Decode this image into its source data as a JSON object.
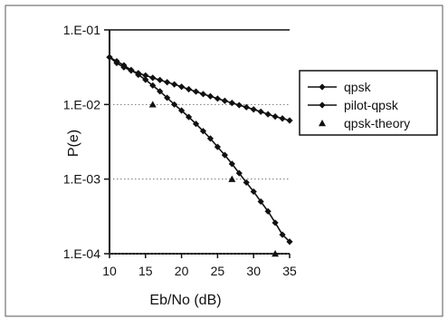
{
  "chart_data": {
    "type": "line",
    "title": "",
    "xlabel": "Eb/No (dB)",
    "ylabel": "P(e)",
    "xlim": [
      10,
      35
    ],
    "ylim": [
      0.0001,
      0.1
    ],
    "yscale": "log",
    "x_ticks": [
      10,
      15,
      20,
      25,
      30,
      35
    ],
    "x_tick_labels": [
      "10",
      "15",
      "20",
      "25",
      "30",
      "35"
    ],
    "y_ticks": [
      0.1,
      0.01,
      0.001,
      0.0001
    ],
    "y_tick_labels": [
      "1.E-01",
      "1.E-02",
      "1.E-03",
      "1.E-04"
    ],
    "grid": "horizontal dotted",
    "legend_position": "right",
    "series": [
      {
        "name": "qpsk",
        "marker": "diamond",
        "line": true,
        "color": "#111111",
        "x": [
          10,
          11,
          12,
          13,
          14,
          15,
          16,
          17,
          18,
          19,
          20,
          21,
          22,
          23,
          24,
          25,
          26,
          27,
          28,
          29,
          30,
          31,
          32,
          33,
          34,
          35
        ],
        "y": [
          0.043,
          0.038,
          0.0335,
          0.029,
          0.025,
          0.0215,
          0.018,
          0.015,
          0.0123,
          0.01,
          0.0083,
          0.0068,
          0.0055,
          0.0044,
          0.0035,
          0.0027,
          0.0021,
          0.0016,
          0.0012,
          0.0009,
          0.00068,
          0.0005,
          0.00037,
          0.00026,
          0.00018,
          0.000145
        ]
      },
      {
        "name": "pilot-qpsk",
        "marker": "diamond",
        "line": true,
        "color": "#111111",
        "x": [
          10,
          11,
          12,
          13,
          14,
          15,
          16,
          17,
          18,
          19,
          20,
          21,
          22,
          23,
          24,
          25,
          26,
          27,
          28,
          29,
          30,
          31,
          32,
          33,
          34,
          35
        ],
        "y": [
          0.043,
          0.036,
          0.0315,
          0.0285,
          0.0263,
          0.0245,
          0.0228,
          0.0213,
          0.0199,
          0.0186,
          0.0173,
          0.016,
          0.0149,
          0.0138,
          0.0129,
          0.012,
          0.0112,
          0.0105,
          0.0098,
          0.0092,
          0.0086,
          0.008,
          0.0074,
          0.0069,
          0.0065,
          0.0061
        ]
      },
      {
        "name": "qpsk-theory",
        "marker": "triangle",
        "line": false,
        "color": "#111111",
        "x": [
          16,
          27,
          33
        ],
        "y": [
          0.01,
          0.001,
          0.0001
        ]
      }
    ]
  }
}
